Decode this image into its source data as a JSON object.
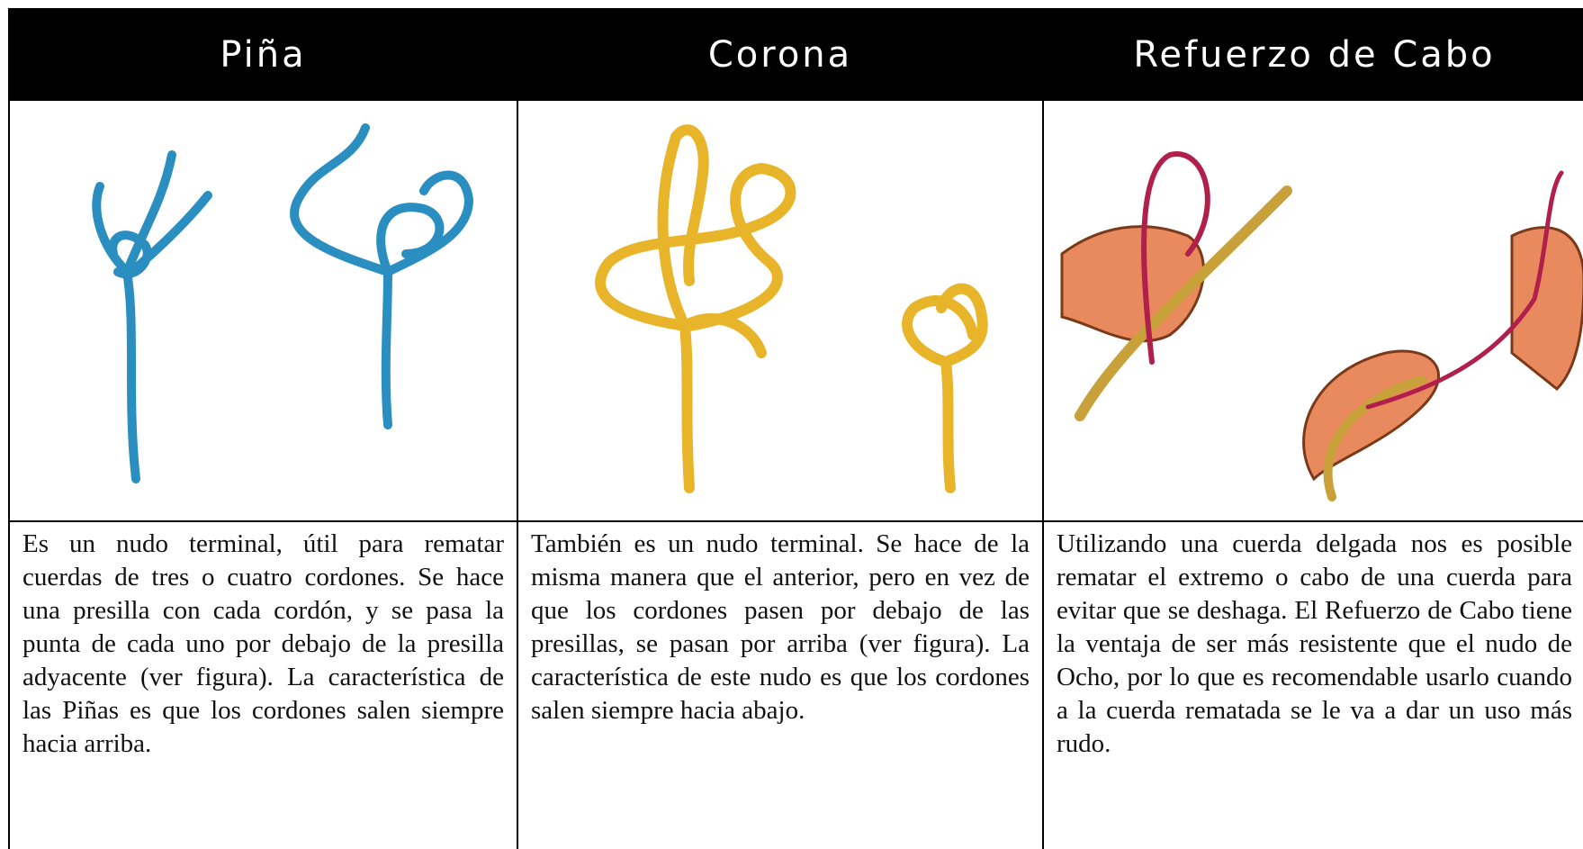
{
  "columns": [
    {
      "title": "Piña",
      "description": "Es un nudo terminal, útil para rematar cuerdas de tres o cuatro cordones. Se hace una presilla con cada cordón, y se pasa la punta de cada uno por debajo de la presilla adyacente (ver figura). La característica de las Piñas es que los cordones salen siempre hacia arriba."
    },
    {
      "title": "Corona",
      "description": "También es un nudo terminal. Se hace de la misma manera que el anterior, pero en vez de que los cordones pasen por debajo de las presillas, se pasan por arriba (ver figura). La característica de este nudo es que los cordones salen siempre hacia abajo."
    },
    {
      "title": "Refuerzo de Cabo",
      "description": "Utilizando una cuerda delgada nos es posible rematar el extremo o cabo de una cuerda para evitar que se deshaga. El Refuerzo de Cabo tiene la ventaja de ser más resistente que el nudo de Ocho, por lo que es recomendable usarlo cuando a la cuerda rematada se le va a dar un uso más rudo."
    }
  ]
}
